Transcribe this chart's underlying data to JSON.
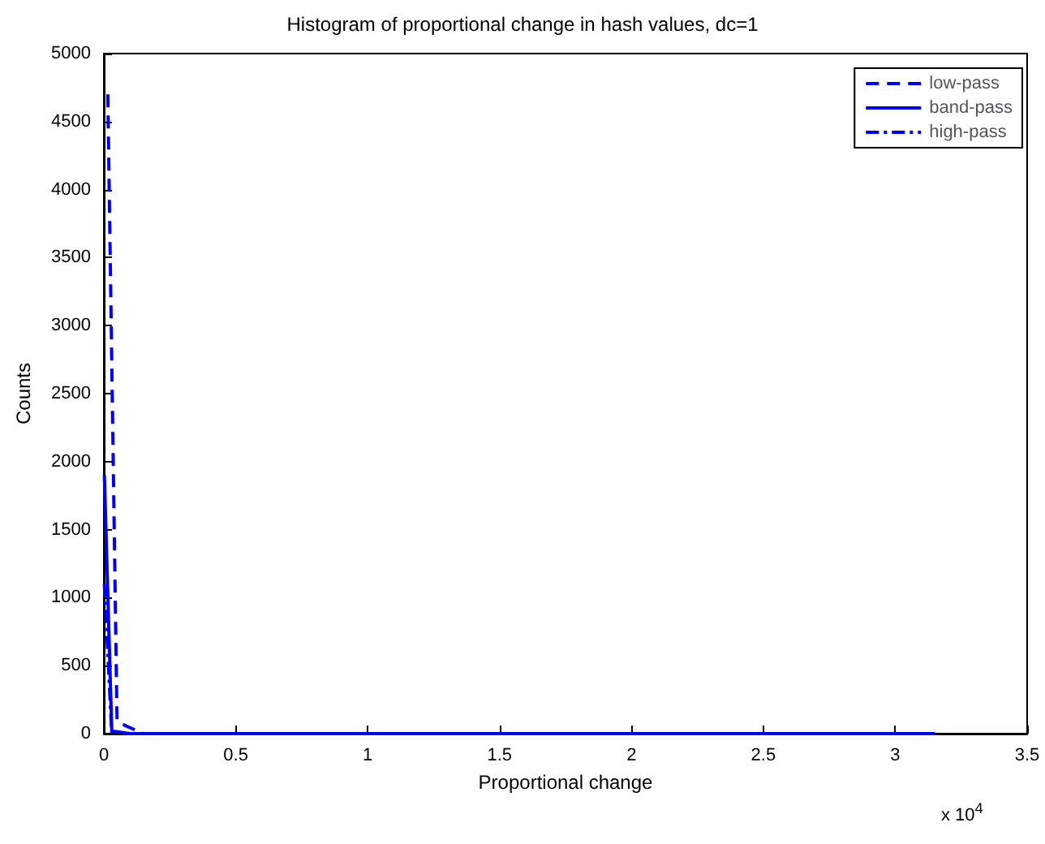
{
  "chart_data": {
    "type": "line",
    "title": "Histogram of proportional change in hash values, dc=1",
    "xlabel": "Proportional change",
    "ylabel": "Counts",
    "annotations": [
      "x 10$^{4}$"
    ],
    "xlim": [
      0,
      3.5
    ],
    "xticks": [
      0,
      0.5,
      1,
      1.5,
      2,
      2.5,
      3,
      3.5
    ],
    "ylim": [
      0,
      5000
    ],
    "yticks": [
      0,
      500,
      1000,
      1500,
      2000,
      2500,
      3000,
      3500,
      4000,
      4500,
      5000
    ],
    "grid": false,
    "legend": "top right",
    "marker": "none",
    "series": [
      {
        "name": "low-pass",
        "color": "#0000ff",
        "line_style": "dashed",
        "x": [
          0.015,
          0.05,
          0.08,
          0.15,
          3.15
        ],
        "values": [
          4700,
          100,
          60,
          0,
          0
        ]
      },
      {
        "name": "band-pass",
        "color": "#0000ff",
        "line_style": "solid",
        "x": [
          0.002,
          0.03,
          0.1,
          3.15
        ],
        "values": [
          1900,
          20,
          0,
          0
        ]
      },
      {
        "name": "high-pass",
        "color": "#0000ff",
        "line_style": "dashdot",
        "x": [
          0.002,
          0.03
        ],
        "values": [
          1100,
          0
        ]
      }
    ]
  }
}
